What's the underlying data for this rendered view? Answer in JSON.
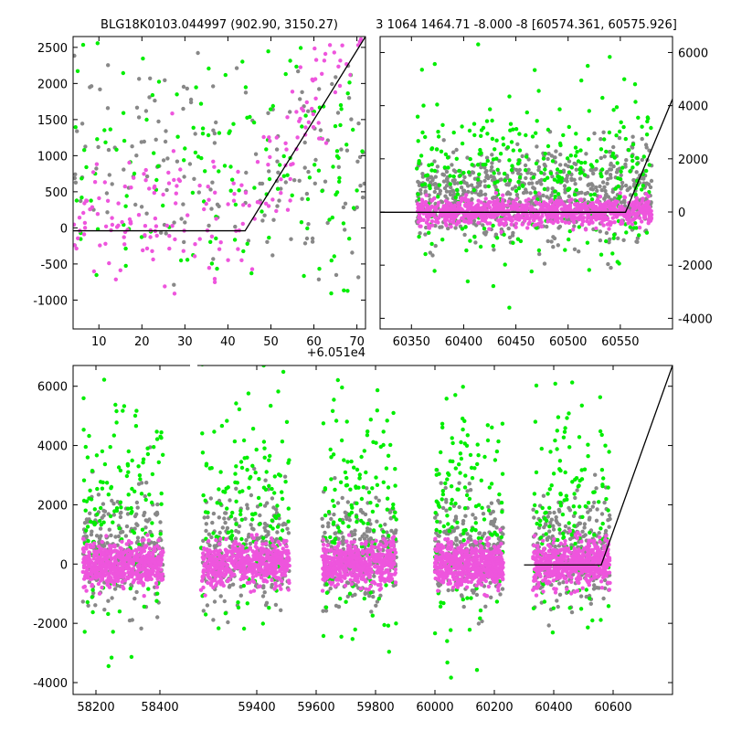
{
  "colors": {
    "gray": "#888888",
    "green": "#00ee00",
    "magenta": "#ee55dd",
    "model": "#000000"
  },
  "titles": {
    "left": "BLG18K0103.044997 (902.90, 3150.27)",
    "right": "3 1064 1464.71 -8.000 -8 [60574.361, 60575.926]"
  },
  "chart_data": [
    {
      "id": "top-left",
      "type": "scatter",
      "title": "BLG18K0103.044997 (902.90, 3150.27)",
      "x_offset_label": "+6.051e4",
      "xlim": [
        4,
        72
      ],
      "ylim": [
        -1400,
        2650
      ],
      "xticks": [
        10,
        20,
        30,
        40,
        50,
        60,
        70
      ],
      "yticks": [
        -1000,
        -500,
        0,
        500,
        1000,
        1500,
        2000,
        2500
      ],
      "yaxis_side": "left",
      "model_line": [
        [
          4,
          -40
        ],
        [
          44,
          -40
        ],
        [
          72,
          2650
        ]
      ],
      "series": [
        {
          "color": "gray",
          "x_range": [
            4,
            72
          ],
          "y_center": 900,
          "y_spread": 700,
          "count": 170
        },
        {
          "color": "green",
          "x_range": [
            4,
            72
          ],
          "y_center": 700,
          "y_spread": 750,
          "count": 160
        },
        {
          "color": "magenta",
          "x_range": [
            4,
            72
          ],
          "y_center": 250,
          "y_spread": 450,
          "count": 200,
          "follows_model": true
        }
      ]
    },
    {
      "id": "top-right",
      "type": "scatter",
      "title": "3 1064 1464.71 -8.000 -8 [60574.361, 60575.926]",
      "xlim": [
        60320,
        60600
      ],
      "ylim": [
        -4400,
        6600
      ],
      "xticks": [
        60350,
        60400,
        60450,
        60500,
        60550
      ],
      "yticks": [
        -4000,
        -2000,
        0,
        2000,
        4000,
        6000
      ],
      "yaxis_side": "right",
      "model_line": [
        [
          60320,
          -10
        ],
        [
          60555,
          -10
        ],
        [
          60600,
          4250
        ]
      ],
      "series": [
        {
          "color": "gray",
          "x_range": [
            60355,
            60580
          ],
          "y_center": 600,
          "y_spread": 900,
          "count": 700
        },
        {
          "color": "green",
          "x_range": [
            60355,
            60580
          ],
          "y_center": 800,
          "y_spread": 1400,
          "count": 350
        },
        {
          "color": "magenta",
          "x_range": [
            60355,
            60580
          ],
          "y_center": 0,
          "y_spread": 250,
          "count": 900
        }
      ]
    },
    {
      "id": "bottom",
      "type": "scatter",
      "xlim": [
        58130,
        60670
      ],
      "ylim": [
        -4400,
        6700
      ],
      "broken_axis_gap": [
        58430,
        58470
      ],
      "xticks": [
        58200,
        58400,
        59400,
        59600,
        59800,
        60000,
        60200,
        60400,
        60600
      ],
      "yticks": [
        -4000,
        -2000,
        0,
        2000,
        4000,
        6000
      ],
      "yaxis_side": "left",
      "model_line": [
        [
          60300,
          -30
        ],
        [
          60560,
          -30
        ],
        [
          60670,
          6700
        ]
      ],
      "seasons": [
        {
          "x_range": [
            58160,
            58410
          ],
          "display_x_range": [
            58160,
            58410
          ]
        },
        {
          "x_range": [
            59230,
            59510
          ],
          "display_x_range": [
            58550,
            58830
          ]
        },
        {
          "x_range": [
            59620,
            59870
          ],
          "display_x_range": [
            58930,
            59180
          ]
        },
        {
          "x_range": [
            60000,
            60230
          ],
          "display_x_range": [
            59330,
            59560
          ]
        },
        {
          "x_range": [
            60330,
            60590
          ],
          "display_x_range": [
            60330,
            60590
          ]
        }
      ],
      "series": [
        {
          "color": "gray",
          "y_center": 500,
          "y_spread": 900,
          "count_per_season": 260
        },
        {
          "color": "green",
          "y_center": 1200,
          "y_spread": 1800,
          "count_per_season": 150
        },
        {
          "color": "magenta",
          "y_center": 0,
          "y_spread": 350,
          "count_per_season": 550
        }
      ]
    }
  ]
}
